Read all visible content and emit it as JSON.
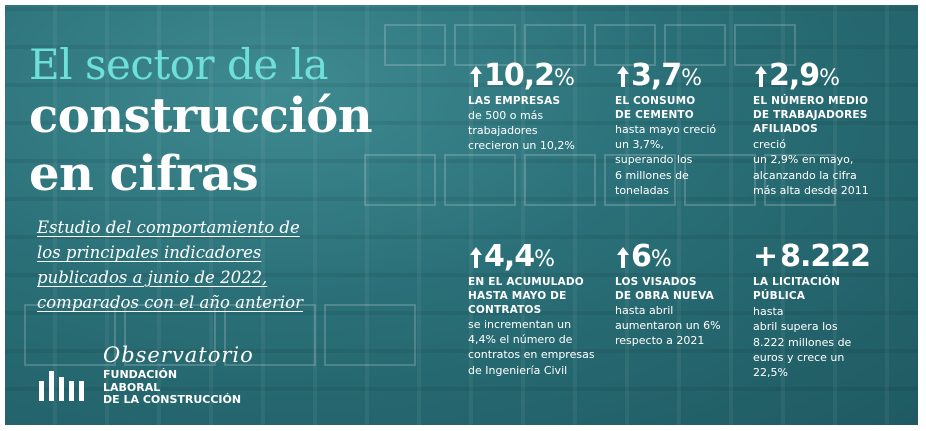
{
  "title": {
    "line1": "El sector de la",
    "line2": "construcción",
    "line3": "en cifras"
  },
  "subtitle": [
    "Estudio del comportamiento de",
    "los principales indicadores",
    "publicados a junio de 2022,",
    "comparados con el año anterior"
  ],
  "logo": {
    "script": "Observatorio",
    "lines": [
      "FUNDACIÓN",
      "LABORAL",
      "DE LA CONSTRUCCIÓN"
    ]
  },
  "stats": [
    {
      "value": "10,2",
      "unit": "%",
      "label": [
        "LAS EMPRESAS"
      ],
      "desc": [
        "de 500 o más",
        "trabajadores",
        "crecieron un 10,2%"
      ]
    },
    {
      "value": "3,7",
      "unit": "%",
      "label": [
        "EL CONSUMO",
        "DE CEMENTO"
      ],
      "desc": [
        "hasta mayo creció",
        "un 3,7%,",
        "superando los",
        "6 millones de",
        "toneladas"
      ]
    },
    {
      "value": "2,9",
      "unit": "%",
      "label": [
        "EL NÚMERO MEDIO",
        "DE TRABAJADORES"
      ],
      "label_inline": "AFILIADOS",
      "desc_inline": " creció",
      "desc": [
        "un 2,9% en mayo,",
        "alcanzando la cifra",
        "más alta desde 2011"
      ]
    },
    {
      "value": "4,4",
      "unit": "%",
      "label": [
        "EN EL ACUMULADO",
        "HASTA MAYO DE",
        "CONTRATOS"
      ],
      "desc": [
        "se incrementan un",
        "4,4% el número de",
        "contratos en empresas",
        "de Ingeniería Civil"
      ]
    },
    {
      "value": "6",
      "unit": "%",
      "label": [
        "LOS VISADOS",
        "DE OBRA NUEVA"
      ],
      "desc": [
        "hasta abril",
        "aumentaron un 6%",
        "respecto a 2021"
      ]
    },
    {
      "prefix": "+",
      "value": "8.222",
      "label": [
        "LA LICITACIÓN"
      ],
      "label_inline": "PÚBLICA",
      "desc_inline": " hasta",
      "desc": [
        "abril supera los",
        "8.222 millones de",
        "euros y crece un",
        "22,5%"
      ]
    }
  ],
  "colors": {
    "background": "#2a6f77",
    "title_accent": "#6fe0d9",
    "arrow": "#ffffff",
    "text": "#ffffff"
  }
}
